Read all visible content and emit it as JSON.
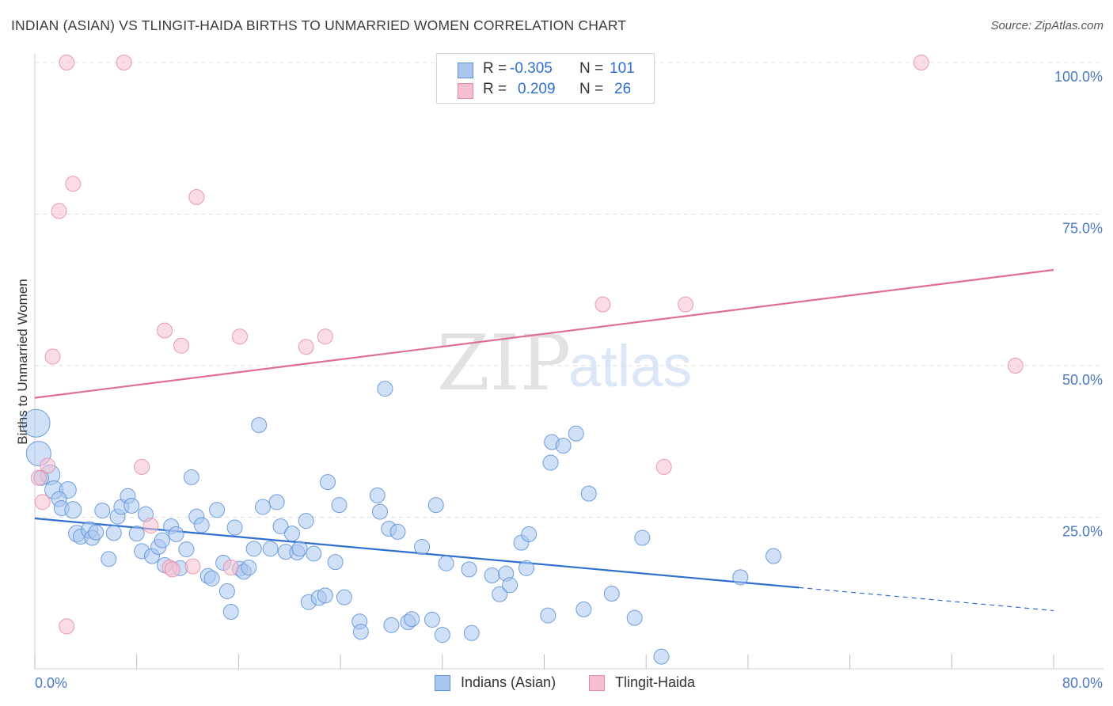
{
  "header": {
    "title": "INDIAN (ASIAN) VS TLINGIT-HAIDA BIRTHS TO UNMARRIED WOMEN CORRELATION CHART",
    "source": "Source: ZipAtlas.com"
  },
  "watermark": {
    "zip": "ZIP",
    "atlas": "atlas"
  },
  "legend": {
    "rows": [
      {
        "r_label": "R =",
        "r_value": "-0.305",
        "n_label": "N =",
        "n_value": "101"
      },
      {
        "r_label": "R =",
        "r_value": "0.209",
        "n_label": "N =",
        "n_value": "26"
      }
    ]
  },
  "bottom_legend": {
    "series1": "Indians (Asian)",
    "series2": "Tlingit-Haida"
  },
  "chart_data": {
    "type": "scatter",
    "title": "INDIAN (ASIAN) VS TLINGIT-HAIDA BIRTHS TO UNMARRIED WOMEN CORRELATION CHART",
    "ylabel": "Births to Unmarried Women",
    "xlabel": "",
    "xlim": [
      0,
      80
    ],
    "ylim": [
      0,
      105
    ],
    "x_tick_labels": [
      "0.0%",
      "80.0%"
    ],
    "y_tick_labels": [
      "100.0%",
      "75.0%",
      "50.0%",
      "25.0%"
    ],
    "y_ticks": [
      100,
      75,
      50,
      25
    ],
    "grid": true,
    "legend_position": "top-center",
    "colors": {
      "blue_fill": "#a9c7ee",
      "blue_stroke": "#5b8fd6",
      "blue_line": "#2f6fd0",
      "pink_fill": "#f6bfd0",
      "pink_stroke": "#e78aa8",
      "pink_line": "#e06e93",
      "tick_text": "#4a78c2"
    },
    "series": [
      {
        "name": "Indians (Asian)",
        "r": -0.305,
        "n": 101,
        "trend": {
          "x": [
            0,
            60
          ],
          "y": [
            24.8,
            13.4
          ],
          "dashed_to": [
            80,
            9.6
          ]
        },
        "points": [
          [
            0.1,
            40.5,
            16
          ],
          [
            0.3,
            35.5,
            14
          ],
          [
            1.2,
            32,
            11
          ],
          [
            1.5,
            29.5,
            10
          ],
          [
            2.6,
            29.5,
            9
          ],
          [
            1.9,
            28,
            8
          ],
          [
            2.1,
            26.5,
            8
          ],
          [
            3.0,
            26.2,
            9
          ],
          [
            3.3,
            22.3,
            9
          ],
          [
            3.6,
            21.8,
            8
          ],
          [
            4.3,
            22.9,
            9
          ],
          [
            4.5,
            21.6,
            8
          ],
          [
            4.8,
            22.5,
            8
          ],
          [
            5.3,
            26.1,
            8
          ],
          [
            5.8,
            18.1,
            8
          ],
          [
            6.2,
            22.4,
            8
          ],
          [
            6.5,
            25.1,
            8
          ],
          [
            6.8,
            26.7,
            8
          ],
          [
            7.3,
            28.5,
            8
          ],
          [
            7.6,
            26.9,
            8
          ],
          [
            8.0,
            22.3,
            8
          ],
          [
            8.4,
            19.4,
            8
          ],
          [
            8.7,
            25.5,
            8
          ],
          [
            9.2,
            18.6,
            8
          ],
          [
            9.7,
            20.1,
            8
          ],
          [
            10.0,
            21.2,
            8
          ],
          [
            10.2,
            17.1,
            8
          ],
          [
            10.7,
            23.5,
            8
          ],
          [
            11.1,
            22.2,
            8
          ],
          [
            11.4,
            16.6,
            8
          ],
          [
            11.9,
            19.7,
            8
          ],
          [
            12.3,
            31.6,
            8
          ],
          [
            12.7,
            25.1,
            8
          ],
          [
            13.1,
            23.7,
            8
          ],
          [
            13.6,
            15.3,
            8
          ],
          [
            13.9,
            14.9,
            8
          ],
          [
            14.3,
            26.2,
            8
          ],
          [
            14.8,
            17.5,
            8
          ],
          [
            15.1,
            12.8,
            8
          ],
          [
            15.4,
            9.4,
            8
          ],
          [
            15.7,
            23.3,
            8
          ],
          [
            16.1,
            16.5,
            8
          ],
          [
            16.4,
            16.0,
            8
          ],
          [
            16.8,
            16.7,
            8
          ],
          [
            17.2,
            19.8,
            8
          ],
          [
            17.6,
            40.2,
            8
          ],
          [
            17.9,
            26.7,
            8
          ],
          [
            18.5,
            19.8,
            8
          ],
          [
            19.0,
            27.5,
            8
          ],
          [
            19.3,
            23.5,
            8
          ],
          [
            19.7,
            19.3,
            8
          ],
          [
            20.2,
            22.3,
            8
          ],
          [
            20.6,
            19.2,
            8
          ],
          [
            20.8,
            19.8,
            8
          ],
          [
            21.3,
            24.4,
            8
          ],
          [
            21.5,
            11.0,
            8
          ],
          [
            21.9,
            19.0,
            8
          ],
          [
            22.3,
            11.7,
            8
          ],
          [
            22.8,
            12.1,
            8
          ],
          [
            23.0,
            30.8,
            8
          ],
          [
            23.6,
            17.6,
            8
          ],
          [
            23.9,
            27.0,
            8
          ],
          [
            24.3,
            11.8,
            8
          ],
          [
            25.5,
            7.8,
            8
          ],
          [
            25.6,
            6.1,
            8
          ],
          [
            26.9,
            28.6,
            8
          ],
          [
            27.1,
            25.9,
            8
          ],
          [
            27.5,
            46.2,
            8
          ],
          [
            27.8,
            23.1,
            8
          ],
          [
            28.0,
            7.2,
            8
          ],
          [
            28.5,
            22.6,
            8
          ],
          [
            29.3,
            7.7,
            8
          ],
          [
            29.6,
            8.2,
            8
          ],
          [
            30.4,
            20.1,
            8
          ],
          [
            31.2,
            8.1,
            8
          ],
          [
            31.5,
            27.0,
            8
          ],
          [
            32.0,
            5.6,
            8
          ],
          [
            32.3,
            17.4,
            8
          ],
          [
            34.1,
            16.4,
            8
          ],
          [
            34.3,
            5.9,
            8
          ],
          [
            35.9,
            15.4,
            8
          ],
          [
            36.5,
            12.3,
            8
          ],
          [
            37.0,
            15.7,
            8
          ],
          [
            37.3,
            13.8,
            8
          ],
          [
            38.2,
            20.8,
            8
          ],
          [
            38.6,
            16.6,
            8
          ],
          [
            38.8,
            22.2,
            8
          ],
          [
            40.3,
            8.8,
            8
          ],
          [
            40.5,
            34.0,
            8
          ],
          [
            40.6,
            37.4,
            8
          ],
          [
            41.5,
            36.8,
            8
          ],
          [
            42.5,
            38.8,
            8
          ],
          [
            43.1,
            9.8,
            8
          ],
          [
            43.5,
            28.9,
            8
          ],
          [
            45.3,
            12.4,
            8
          ],
          [
            47.1,
            8.4,
            8
          ],
          [
            47.7,
            21.6,
            8
          ],
          [
            49.2,
            2.0,
            8
          ],
          [
            55.4,
            15.1,
            8
          ],
          [
            58.0,
            18.6,
            8
          ],
          [
            0.5,
            31.5,
            8
          ]
        ]
      },
      {
        "name": "Tlingit-Haida",
        "r": 0.209,
        "n": 26,
        "trend": {
          "x": [
            0,
            80
          ],
          "y": [
            44.7,
            65.8
          ]
        },
        "points": [
          [
            2.5,
            100,
            8
          ],
          [
            7.0,
            100,
            8
          ],
          [
            69.6,
            100,
            8
          ],
          [
            3.0,
            80.0,
            8
          ],
          [
            1.9,
            75.5,
            8
          ],
          [
            12.7,
            77.8,
            8
          ],
          [
            1.4,
            51.5,
            8
          ],
          [
            10.2,
            55.8,
            8
          ],
          [
            11.5,
            53.3,
            8
          ],
          [
            16.1,
            54.8,
            8
          ],
          [
            21.3,
            53.1,
            8
          ],
          [
            22.8,
            54.8,
            8
          ],
          [
            44.6,
            60.1,
            8
          ],
          [
            51.1,
            60.1,
            8
          ],
          [
            77.0,
            50.0,
            8
          ],
          [
            1.0,
            33.5,
            8
          ],
          [
            8.4,
            33.3,
            8
          ],
          [
            49.4,
            33.3,
            8
          ],
          [
            0.6,
            27.5,
            8
          ],
          [
            0.3,
            31.5,
            8
          ],
          [
            9.1,
            23.6,
            8
          ],
          [
            10.6,
            16.7,
            8
          ],
          [
            12.4,
            16.9,
            8
          ],
          [
            15.4,
            16.7,
            8
          ],
          [
            2.5,
            7.0,
            8
          ],
          [
            10.8,
            16.4,
            8
          ]
        ]
      }
    ]
  }
}
